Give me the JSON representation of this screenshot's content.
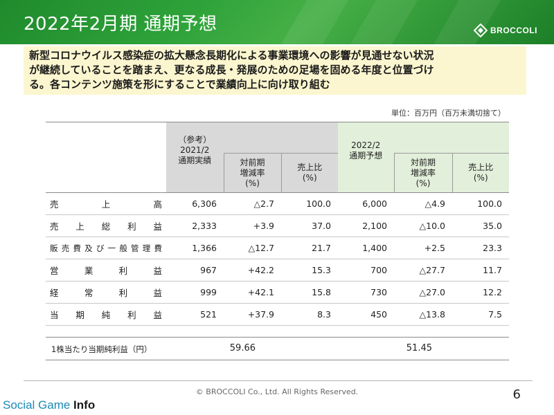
{
  "header": {
    "title": "2022年2月期 通期予想",
    "brand": "BROCCOLI"
  },
  "lead": {
    "lines": [
      "新型コロナウイルス感染症の拡大懸念長期化による事業環境への影響が見通せない状況",
      "が継続していることを踏まえ、更なる成長・発展のための足場を固める年度と位置づけ",
      "る。各コンテンツ施策を形にすることで業績向上に向け取り組む"
    ]
  },
  "unit": "単位：百万円（百万未満切捨て）",
  "table": {
    "prev_group": [
      "（参考）",
      "2021/2",
      "通期実績"
    ],
    "prev_yoy": [
      "対前期",
      "増減率",
      "(%)"
    ],
    "prev_ratio": [
      "売上比",
      "(%)"
    ],
    "fcst_group": [
      "2022/2",
      "通期予想"
    ],
    "fcst_yoy": [
      "対前期",
      "増減率",
      "(%)"
    ],
    "fcst_ratio": [
      "売上比",
      "(%)"
    ],
    "rows": [
      {
        "chars": [
          "売",
          "上",
          "高"
        ],
        "v1": "6,306",
        "c1": "△2.7",
        "r1": "100.0",
        "v2": "6,000",
        "c2": "△4.9",
        "r2": "100.0"
      },
      {
        "chars": [
          "売",
          "上",
          "総",
          "利",
          "益"
        ],
        "v1": "2,333",
        "c1": "+3.9",
        "r1": "37.0",
        "v2": "2,100",
        "c2": "△10.0",
        "r2": "35.0"
      },
      {
        "chars": [
          "販",
          "売",
          "費",
          "及",
          "び",
          "一",
          "般",
          "管",
          "理",
          "費"
        ],
        "v1": "1,366",
        "c1": "△12.7",
        "r1": "21.7",
        "v2": "1,400",
        "c2": "+2.5",
        "r2": "23.3"
      },
      {
        "chars": [
          "営",
          "業",
          "利",
          "益"
        ],
        "v1": "967",
        "c1": "+42.2",
        "r1": "15.3",
        "v2": "700",
        "c2": "△27.7",
        "r2": "11.7"
      },
      {
        "chars": [
          "経",
          "常",
          "利",
          "益"
        ],
        "v1": "999",
        "c1": "+42.1",
        "r1": "15.8",
        "v2": "730",
        "c2": "△27.0",
        "r2": "12.2"
      },
      {
        "chars": [
          "当",
          "期",
          "純",
          "利",
          "益"
        ],
        "v1": "521",
        "c1": "+37.9",
        "r1": "8.3",
        "v2": "450",
        "c2": "△13.8",
        "r2": "7.5"
      }
    ],
    "eps": {
      "label": "1株当たり当期純利益（円）",
      "v1": "59.66",
      "v2": "51.45"
    }
  },
  "footer": {
    "copyright": "© BROCCOLI Co., Ltd. All Rights Reserved.",
    "page": "6"
  },
  "watermark": {
    "part1": "Social Game ",
    "part2": "Info"
  }
}
